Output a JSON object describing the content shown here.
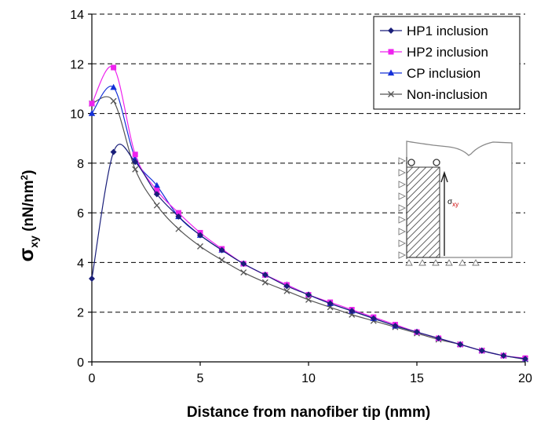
{
  "chart_data": {
    "type": "line",
    "title": "",
    "xlabel": "Distance from nanofiber tip (nmm)",
    "ylabel": {
      "symbol": "σ",
      "sub": "xy",
      "unit_open": " (nN/nm",
      "unit_sup": "2",
      "unit_close": ")"
    },
    "xlim": [
      0,
      20
    ],
    "ylim": [
      0,
      14
    ],
    "xticks": [
      0,
      5,
      10,
      15,
      20
    ],
    "yticks": [
      0,
      2,
      4,
      6,
      8,
      10,
      12,
      14
    ],
    "grid": "horizontal dashed",
    "legend_position": "top-right",
    "series": [
      {
        "name": "HP1 inclusion",
        "marker": "diamond",
        "color": "#1a1f7a",
        "x": [
          0,
          1,
          2,
          3,
          4,
          5,
          6,
          7,
          8,
          9,
          10,
          11,
          12,
          13,
          14,
          15,
          16,
          17,
          18,
          19,
          20
        ],
        "values": [
          3.35,
          8.45,
          8.05,
          6.75,
          5.85,
          5.1,
          4.5,
          3.95,
          3.5,
          3.05,
          2.7,
          2.35,
          2.05,
          1.75,
          1.45,
          1.2,
          0.95,
          0.7,
          0.45,
          0.25,
          0.12
        ]
      },
      {
        "name": "HP2 inclusion",
        "marker": "square",
        "color": "#ee22ee",
        "x": [
          0,
          1,
          2,
          3,
          4,
          5,
          6,
          7,
          8,
          9,
          10,
          11,
          12,
          13,
          14,
          15,
          16,
          17,
          18,
          19,
          20
        ],
        "values": [
          10.4,
          11.85,
          8.35,
          6.9,
          6.0,
          5.2,
          4.55,
          3.95,
          3.5,
          3.1,
          2.7,
          2.4,
          2.1,
          1.8,
          1.5,
          1.2,
          0.95,
          0.7,
          0.45,
          0.25,
          0.15
        ]
      },
      {
        "name": "CP inclusion",
        "marker": "triangle",
        "color": "#1430d8",
        "x": [
          0,
          1,
          2,
          3,
          4,
          5,
          6,
          7,
          8,
          9,
          10,
          11,
          12,
          13,
          14,
          15,
          16,
          17,
          18,
          19,
          20
        ],
        "values": [
          10.0,
          11.05,
          8.2,
          7.1,
          5.85,
          5.1,
          4.5,
          3.95,
          3.5,
          3.1,
          2.7,
          2.35,
          2.05,
          1.75,
          1.45,
          1.2,
          0.95,
          0.7,
          0.45,
          0.25,
          0.12
        ]
      },
      {
        "name": "Non-inclusion",
        "marker": "x",
        "color": "#555555",
        "x": [
          0,
          1,
          2,
          3,
          4,
          5,
          6,
          7,
          8,
          9,
          10,
          11,
          12,
          13,
          14,
          15,
          16,
          17,
          18,
          19,
          20
        ],
        "values": [
          10.4,
          10.5,
          7.75,
          6.3,
          5.35,
          4.65,
          4.1,
          3.6,
          3.2,
          2.85,
          2.5,
          2.2,
          1.9,
          1.65,
          1.4,
          1.15,
          0.9,
          0.7,
          0.45,
          0.25,
          0.1
        ]
      }
    ]
  },
  "inset": {
    "label_symbol": "σ",
    "label_sub": "xy"
  }
}
